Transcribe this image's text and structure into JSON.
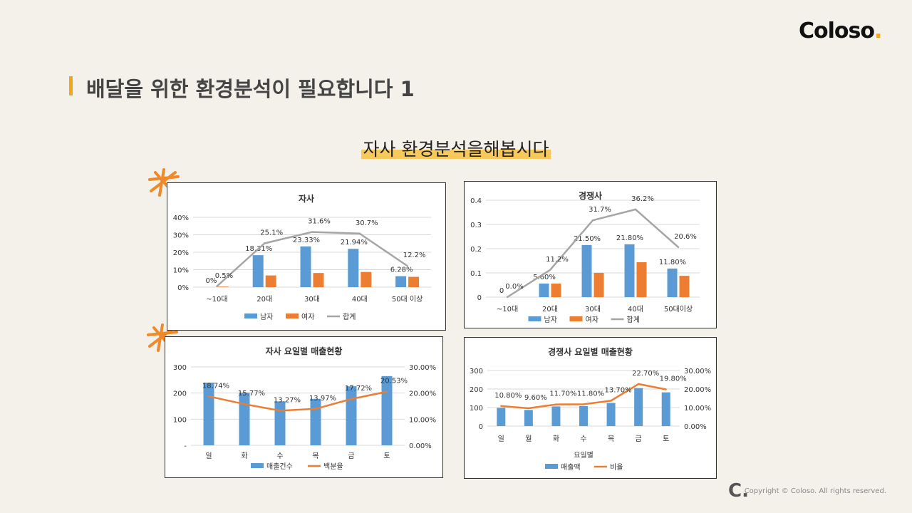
{
  "brand": {
    "logo_text": "Coloso",
    "logo_dot": ".",
    "accent_color": "#f2a61d"
  },
  "slide": {
    "title": "배달을 위한 환경분석이 필요합니다 1",
    "subtitle": "자사 환경분석을해봅시다"
  },
  "footer": {
    "mark": "C.",
    "copyright": "Copyright © Coloso. All rights reserved."
  },
  "chart_data": [
    {
      "type": "bar",
      "title": "자사",
      "categories": [
        "~10대",
        "20대",
        "30대",
        "40대",
        "50대 이상"
      ],
      "y_ticks": [
        "0%",
        "10%",
        "20%",
        "30%",
        "40%"
      ],
      "ylim": [
        0,
        0.4
      ],
      "colors": [
        "#5b9bd5",
        "#ed7d31",
        "#a5a5a5"
      ],
      "series": [
        {
          "name": "남자",
          "kind": "bar",
          "values": [
            0,
            0.1831,
            0.2333,
            0.2194,
            0.0628
          ],
          "labels": [
            "0%",
            "18.31%",
            "23.33%",
            "21.94%",
            "6.28%"
          ]
        },
        {
          "name": "여자",
          "kind": "bar",
          "values": [
            0.003,
            0.067,
            0.081,
            0.087,
            0.059
          ],
          "labels": []
        },
        {
          "name": "합계",
          "kind": "line",
          "values": [
            0.005,
            0.251,
            0.316,
            0.307,
            0.122
          ],
          "labels": [
            "0.5%",
            "25.1%",
            "31.6%",
            "30.7%",
            "12.2%"
          ]
        }
      ]
    },
    {
      "type": "bar",
      "title": "경쟁사",
      "categories": [
        "~10대",
        "20대",
        "30대",
        "40대",
        "50대이상"
      ],
      "y_ticks": [
        "0",
        "0.1",
        "0.2",
        "0.3",
        "0.4"
      ],
      "ylim": [
        0,
        0.4
      ],
      "colors": [
        "#5b9bd5",
        "#ed7d31",
        "#a5a5a5"
      ],
      "series": [
        {
          "name": "남자",
          "kind": "bar",
          "values": [
            0,
            0.056,
            0.215,
            0.218,
            0.118
          ],
          "labels": [
            "0",
            "5.60%",
            "21.50%",
            "21.80%",
            "11.80%"
          ]
        },
        {
          "name": "여자",
          "kind": "bar",
          "values": [
            0,
            0.056,
            0.1,
            0.144,
            0.088
          ],
          "labels": []
        },
        {
          "name": "합계",
          "kind": "line",
          "values": [
            0,
            0.112,
            0.317,
            0.362,
            0.206
          ],
          "labels": [
            "0.0%",
            "11.2%",
            "31.7%",
            "36.2%",
            "20.6%"
          ]
        }
      ]
    },
    {
      "type": "bar",
      "title": "자사 요일별 매출현황",
      "categories": [
        "일",
        "화",
        "수",
        "목",
        "금",
        "토"
      ],
      "y_ticks": [
        "-",
        "100",
        "200",
        "300"
      ],
      "ylim": [
        0,
        300
      ],
      "y2_ticks": [
        "0.00%",
        "10.00%",
        "20.00%",
        "30.00%"
      ],
      "y2lim": [
        0,
        0.3
      ],
      "colors": [
        "#5b9bd5",
        "#ed7d31"
      ],
      "series": [
        {
          "name": "매출건수",
          "kind": "bar",
          "values": [
            240,
            202,
            168,
            178,
            226,
            265
          ],
          "labels": []
        },
        {
          "name": "백분율",
          "kind": "line",
          "axis": "right",
          "values": [
            0.1874,
            0.1577,
            0.1327,
            0.1397,
            0.1772,
            0.2053
          ],
          "labels": [
            "18.74%",
            "15.77%",
            "13.27%",
            "13.97%",
            "17.72%",
            "20.53%"
          ]
        }
      ]
    },
    {
      "type": "bar",
      "title": "경쟁사 요일별 매출현황",
      "categories": [
        "일",
        "월",
        "화",
        "수",
        "목",
        "금",
        "토"
      ],
      "xlabel": "요일별",
      "y_ticks": [
        "0",
        "100",
        "200",
        "300"
      ],
      "ylim": [
        0,
        300
      ],
      "y2_ticks": [
        "0.00%",
        "10.00%",
        "20.00%",
        "30.00%"
      ],
      "y2lim": [
        0,
        0.3
      ],
      "colors": [
        "#5b9bd5",
        "#ed7d31"
      ],
      "series": [
        {
          "name": "매출액",
          "kind": "bar",
          "values": [
            98,
            87,
            106,
            108,
            125,
            205,
            182
          ],
          "labels": []
        },
        {
          "name": "비율",
          "kind": "line",
          "axis": "right",
          "values": [
            0.108,
            0.096,
            0.117,
            0.118,
            0.137,
            0.227,
            0.198
          ],
          "labels": [
            "10.80%",
            "9.60%",
            "11.70%",
            "11.80%",
            "13.70%",
            "22.70%",
            "19.80%"
          ]
        }
      ]
    }
  ]
}
